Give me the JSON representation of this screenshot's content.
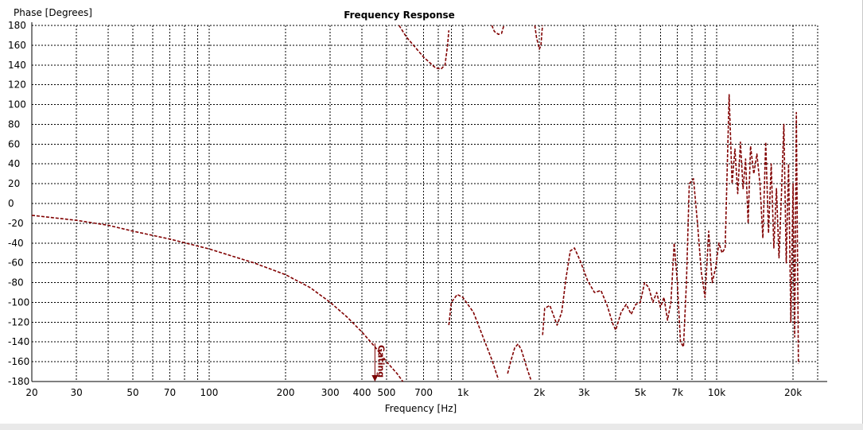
{
  "colors": {
    "trace": "#800000",
    "grid": "#000000",
    "background": "#ffffff"
  },
  "chart_data": {
    "type": "line",
    "title": "Frequency Response",
    "xlabel": "Frequency [Hz]",
    "ylabel": "Phase [Degrees]",
    "x_scale": "log",
    "xlim": [
      20,
      25000
    ],
    "ylim": [
      -180,
      180
    ],
    "x_ticks": [
      {
        "value": 20,
        "label": "20"
      },
      {
        "value": 30,
        "label": "30"
      },
      {
        "value": 50,
        "label": "50"
      },
      {
        "value": 70,
        "label": "70"
      },
      {
        "value": 100,
        "label": "100"
      },
      {
        "value": 200,
        "label": "200"
      },
      {
        "value": 300,
        "label": "300"
      },
      {
        "value": 400,
        "label": "400"
      },
      {
        "value": 500,
        "label": "500"
      },
      {
        "value": 700,
        "label": "700"
      },
      {
        "value": 1000,
        "label": "1k"
      },
      {
        "value": 2000,
        "label": "2k"
      },
      {
        "value": 3000,
        "label": "3k"
      },
      {
        "value": 5000,
        "label": "5k"
      },
      {
        "value": 7000,
        "label": "7k"
      },
      {
        "value": 10000,
        "label": "10k"
      },
      {
        "value": 20000,
        "label": "20k"
      }
    ],
    "y_ticks": [
      180,
      160,
      140,
      120,
      100,
      80,
      60,
      40,
      20,
      0,
      -20,
      -40,
      -60,
      -80,
      -100,
      -120,
      -140,
      -160,
      -180
    ],
    "grid": true,
    "annotations": [
      {
        "text": "Gating",
        "x": 450,
        "y": -180
      }
    ],
    "series": [
      {
        "segments": [
          [
            [
              20,
              -12
            ],
            [
              30,
              -17
            ],
            [
              40,
              -22
            ],
            [
              50,
              -28
            ],
            [
              70,
              -36
            ],
            [
              100,
              -46
            ],
            [
              150,
              -60
            ],
            [
              200,
              -72
            ],
            [
              250,
              -85
            ],
            [
              300,
              -100
            ],
            [
              350,
              -115
            ],
            [
              400,
              -130
            ],
            [
              450,
              -145
            ],
            [
              500,
              -160
            ],
            [
              550,
              -172
            ],
            [
              580,
              -180
            ]
          ],
          [
            [
              560,
              180
            ],
            [
              600,
              168
            ],
            [
              700,
              148
            ],
            [
              780,
              137
            ],
            [
              820,
              136
            ],
            [
              850,
              140
            ],
            [
              870,
              160
            ],
            [
              880,
              175
            ]
          ],
          [
            [
              880,
              -123
            ],
            [
              900,
              -100
            ],
            [
              950,
              -92
            ],
            [
              1000,
              -95
            ],
            [
              1100,
              -110
            ],
            [
              1200,
              -135
            ],
            [
              1300,
              -158
            ],
            [
              1380,
              -178
            ]
          ],
          [
            [
              1300,
              180
            ],
            [
              1330,
              174
            ],
            [
              1380,
              171
            ],
            [
              1420,
              172
            ],
            [
              1450,
              180
            ]
          ],
          [
            [
              1500,
              -172
            ],
            [
              1550,
              -158
            ],
            [
              1600,
              -146
            ],
            [
              1650,
              -142
            ],
            [
              1700,
              -148
            ],
            [
              1780,
              -165
            ],
            [
              1850,
              -178
            ]
          ],
          [
            [
              1920,
              180
            ],
            [
              1950,
              168
            ],
            [
              2000,
              156
            ],
            [
              2030,
              160
            ],
            [
              2050,
              175
            ],
            [
              2060,
              180
            ]
          ],
          [
            [
              2060,
              -133
            ],
            [
              2100,
              -106
            ],
            [
              2200,
              -103
            ],
            [
              2350,
              -123
            ],
            [
              2450,
              -110
            ],
            [
              2550,
              -75
            ],
            [
              2650,
              -48
            ],
            [
              2750,
              -45
            ],
            [
              2900,
              -58
            ],
            [
              3100,
              -78
            ],
            [
              3300,
              -90
            ],
            [
              3500,
              -88
            ],
            [
              3700,
              -103
            ],
            [
              3900,
              -122
            ],
            [
              4000,
              -128
            ],
            [
              4200,
              -110
            ],
            [
              4400,
              -102
            ],
            [
              4600,
              -112
            ],
            [
              4800,
              -102
            ],
            [
              5000,
              -100
            ],
            [
              5200,
              -80
            ],
            [
              5400,
              -85
            ],
            [
              5600,
              -100
            ],
            [
              5800,
              -90
            ],
            [
              6000,
              -105
            ],
            [
              6200,
              -95
            ],
            [
              6400,
              -118
            ],
            [
              6600,
              -100
            ],
            [
              6800,
              -40
            ],
            [
              7000,
              -80
            ],
            [
              7200,
              -140
            ],
            [
              7400,
              -145
            ],
            [
              7600,
              -80
            ],
            [
              7800,
              20
            ],
            [
              8100,
              25
            ],
            [
              8400,
              -20
            ],
            [
              8700,
              -70
            ],
            [
              9000,
              -95
            ],
            [
              9300,
              -28
            ],
            [
              9600,
              -80
            ],
            [
              9900,
              -65
            ],
            [
              10200,
              -40
            ],
            [
              10500,
              -50
            ],
            [
              10800,
              -45
            ],
            [
              11200,
              110
            ],
            [
              11500,
              20
            ],
            [
              11800,
              55
            ],
            [
              12100,
              10
            ],
            [
              12400,
              62
            ],
            [
              12700,
              15
            ],
            [
              13000,
              45
            ],
            [
              13300,
              -20
            ],
            [
              13600,
              58
            ],
            [
              14000,
              30
            ],
            [
              14400,
              50
            ],
            [
              14800,
              20
            ],
            [
              15200,
              -35
            ],
            [
              15600,
              62
            ],
            [
              16000,
              -30
            ],
            [
              16400,
              40
            ],
            [
              16800,
              -45
            ],
            [
              17200,
              15
            ],
            [
              17600,
              -55
            ],
            [
              18000,
              10
            ],
            [
              18400,
              80
            ],
            [
              18800,
              -60
            ],
            [
              19200,
              40
            ],
            [
              19600,
              -120
            ],
            [
              20000,
              20
            ],
            [
              20300,
              -135
            ],
            [
              20600,
              92
            ],
            [
              21000,
              -162
            ]
          ]
        ]
      }
    ]
  }
}
